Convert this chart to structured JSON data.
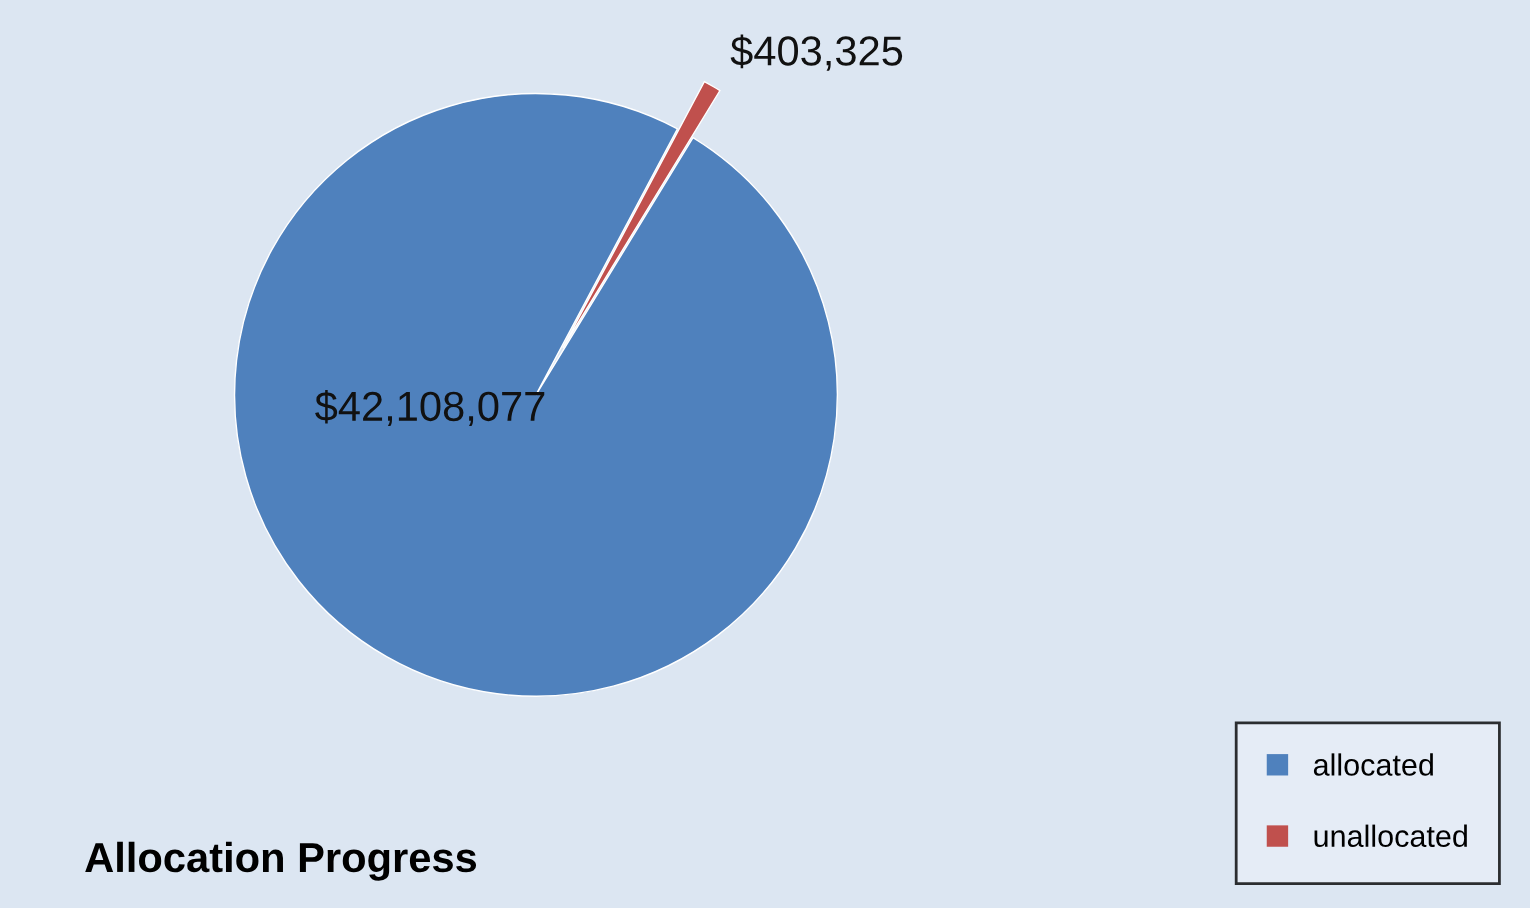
{
  "chart_data": {
    "type": "pie",
    "title": "Allocation Progress",
    "categories": [
      "allocated",
      "unallocated"
    ],
    "values": [
      42108077,
      403325
    ],
    "colors": [
      "#4f81bd",
      "#c0504d"
    ],
    "value_labels": [
      "$42,108,077",
      "$403,325"
    ],
    "legend": "bottom right"
  }
}
